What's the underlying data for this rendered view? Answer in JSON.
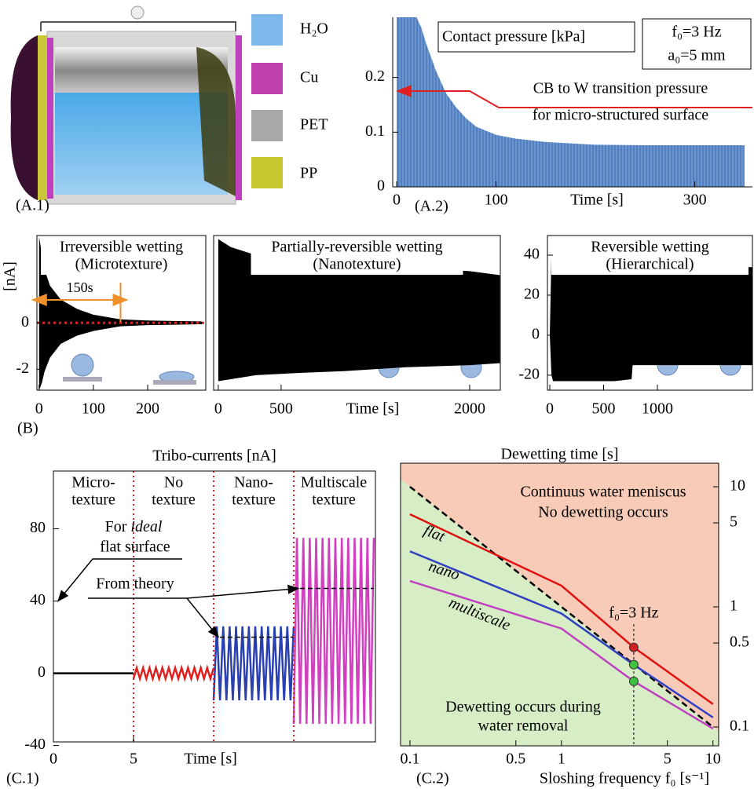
{
  "illustration": {
    "label": "(A.1)",
    "legend": [
      "H₂O",
      "Cu",
      "PET",
      "PP"
    ]
  },
  "chart_data": [
    {
      "type": "area",
      "panel_label": "(A.2)",
      "x_label": "Time [s]",
      "annotations": [
        "Contact pressure [kPa]",
        "CB to W transition pressure",
        "for micro-structured surface"
      ],
      "conditions": [
        "f₀=3 Hz",
        "a₀=5 mm"
      ],
      "x": [
        0,
        5,
        10,
        15,
        20,
        25,
        30,
        40,
        50,
        60,
        70,
        80,
        100,
        120,
        150,
        200,
        250,
        300,
        350
      ],
      "values": [
        0.31,
        0.31,
        0.31,
        0.31,
        0.31,
        0.29,
        0.26,
        0.21,
        0.17,
        0.145,
        0.125,
        0.11,
        0.095,
        0.088,
        0.082,
        0.077,
        0.076,
        0.076,
        0.076
      ],
      "color": "#4f7fc0",
      "threshold": 0.145,
      "threshold_color": "#e02020",
      "xlim": [
        -4,
        358
      ],
      "ylim": [
        0,
        0.31
      ],
      "xticks": [
        0,
        100,
        300
      ],
      "yticks": [
        0,
        0.1,
        0.2
      ]
    },
    {
      "type": "envelope",
      "panel_label": "(B)",
      "title": [
        "Irreversible wetting",
        "(Microtexture)"
      ],
      "y_label": "[nA]",
      "annotation": "150s",
      "marker_time": 150,
      "baseline": 0,
      "x": [
        0,
        5,
        10,
        20,
        40,
        70,
        100,
        150,
        200,
        250,
        300
      ],
      "upper": [
        3.7,
        3.0,
        2.3,
        1.6,
        1.0,
        0.6,
        0.35,
        0.15,
        0.1,
        0.08,
        0.06
      ],
      "lower": [
        -2.9,
        -2.6,
        -2.1,
        -1.5,
        -0.9,
        -0.55,
        -0.35,
        -0.15,
        -0.1,
        -0.08,
        -0.06
      ],
      "color": "#000000",
      "xlim": [
        -4,
        307
      ],
      "ylim": [
        -2.9,
        3.76
      ],
      "xticks": [
        0,
        100,
        200
      ],
      "yticks": [
        -2,
        0
      ]
    },
    {
      "type": "envelope",
      "title": [
        "Partially-reversible wetting",
        "(Nanotexture)"
      ],
      "x_label": "Time [s]",
      "x": [
        0,
        100,
        300,
        600,
        1000,
        1500,
        2000,
        2240
      ],
      "upper": [
        48,
        44,
        40,
        38,
        36,
        34,
        32,
        30
      ],
      "lower": [
        -23,
        -22,
        -20,
        -19,
        -18,
        -16,
        -15,
        -14
      ],
      "color": "#000000",
      "xlim": [
        -37,
        2244
      ],
      "ylim": [
        -27.5,
        49.8
      ],
      "xticks": [
        0,
        500,
        2000
      ]
    },
    {
      "type": "envelope",
      "title": [
        "Reversible wetting",
        "(Hierarchical)"
      ],
      "x": [
        0,
        15,
        30,
        300,
        600,
        760,
        770,
        1100,
        1880
      ],
      "upper": [
        0,
        40,
        45,
        44,
        43,
        42,
        34,
        34,
        34
      ],
      "lower": [
        0,
        -20,
        -23,
        -23,
        -23,
        -22,
        -15,
        -15,
        -15
      ],
      "color": "#000000",
      "xlim": [
        -22,
        1883
      ],
      "ylim": [
        -27.5,
        49.8
      ],
      "xticks": [
        0,
        500,
        1000
      ],
      "yticks": [
        -20,
        0,
        20,
        40
      ]
    },
    {
      "type": "oscillation",
      "title": "Tribo-currents [nA]",
      "panel_label": "(C.1)",
      "x_label": "Time [s]",
      "regions": [
        {
          "label": [
            "Micro-",
            "texture"
          ],
          "xlim": [
            0,
            5
          ],
          "high": 0,
          "low": 0,
          "color": "#000000"
        },
        {
          "label": [
            "No",
            "texture"
          ],
          "xlim": [
            5,
            10
          ],
          "high": 3,
          "low": -3,
          "color": "#e02020"
        },
        {
          "label": [
            "Nano-",
            "texture"
          ],
          "xlim": [
            10,
            15
          ],
          "high": 26,
          "low": -15,
          "color": "#2a3fb0",
          "theory": 20
        },
        {
          "label": [
            "Multiscale",
            "texture"
          ],
          "xlim": [
            15,
            20
          ],
          "high": 75,
          "low": -28,
          "color": "#d040c0",
          "theory": 47
        }
      ],
      "boundary_color": "#e02020",
      "ideal": {
        "text": [
          "For",
          "ideal",
          "flat surface"
        ],
        "value": 40
      },
      "theory_label": "From theory",
      "xlim": [
        0,
        20.1
      ],
      "ylim": [
        -38,
        112
      ],
      "xticks": [
        0,
        5
      ],
      "yticks": [
        -40,
        0,
        40,
        80
      ]
    },
    {
      "type": "line",
      "log_x": true,
      "log_y": true,
      "title": "Dewetting time [s]",
      "panel_label": "(C.2)",
      "x_label": "Sloshing frequency f₀ [s⁻¹]",
      "x": [
        0.1,
        1,
        3,
        10
      ],
      "series": [
        {
          "name": "flat",
          "color": "#e01010",
          "values": [
            5.9,
            1.5,
            0.46,
            0.155
          ]
        },
        {
          "name": "nano",
          "color": "#3040c0",
          "values": [
            2.9,
            0.88,
            0.33,
            0.12
          ]
        },
        {
          "name": "multiscale",
          "color": "#c040c0",
          "values": [
            1.64,
            0.66,
            0.24,
            0.097
          ]
        }
      ],
      "reference": {
        "x": [
          0.1,
          10
        ],
        "values": [
          10,
          0.1
        ]
      },
      "markers": {
        "x": 3,
        "values": [
          0.46,
          0.33,
          0.24
        ],
        "colors": [
          "#d02020",
          "#40c040",
          "#40c040"
        ]
      },
      "marker_label": "f₀=3 Hz",
      "regions": [
        [
          "Continuus water meniscus",
          "No dewetting occurs"
        ],
        [
          "Dewetting occurs during",
          "water removal"
        ]
      ],
      "region_colors": [
        "#f7cbb8",
        "#d6edc6"
      ],
      "xlim": [
        0.0867,
        10.9
      ],
      "ylim": [
        0.0697,
        15.7
      ],
      "xticks": [
        0.1,
        0.5,
        1,
        5,
        10
      ],
      "yticks": [
        0.1,
        0.5,
        1,
        5,
        10
      ]
    }
  ]
}
